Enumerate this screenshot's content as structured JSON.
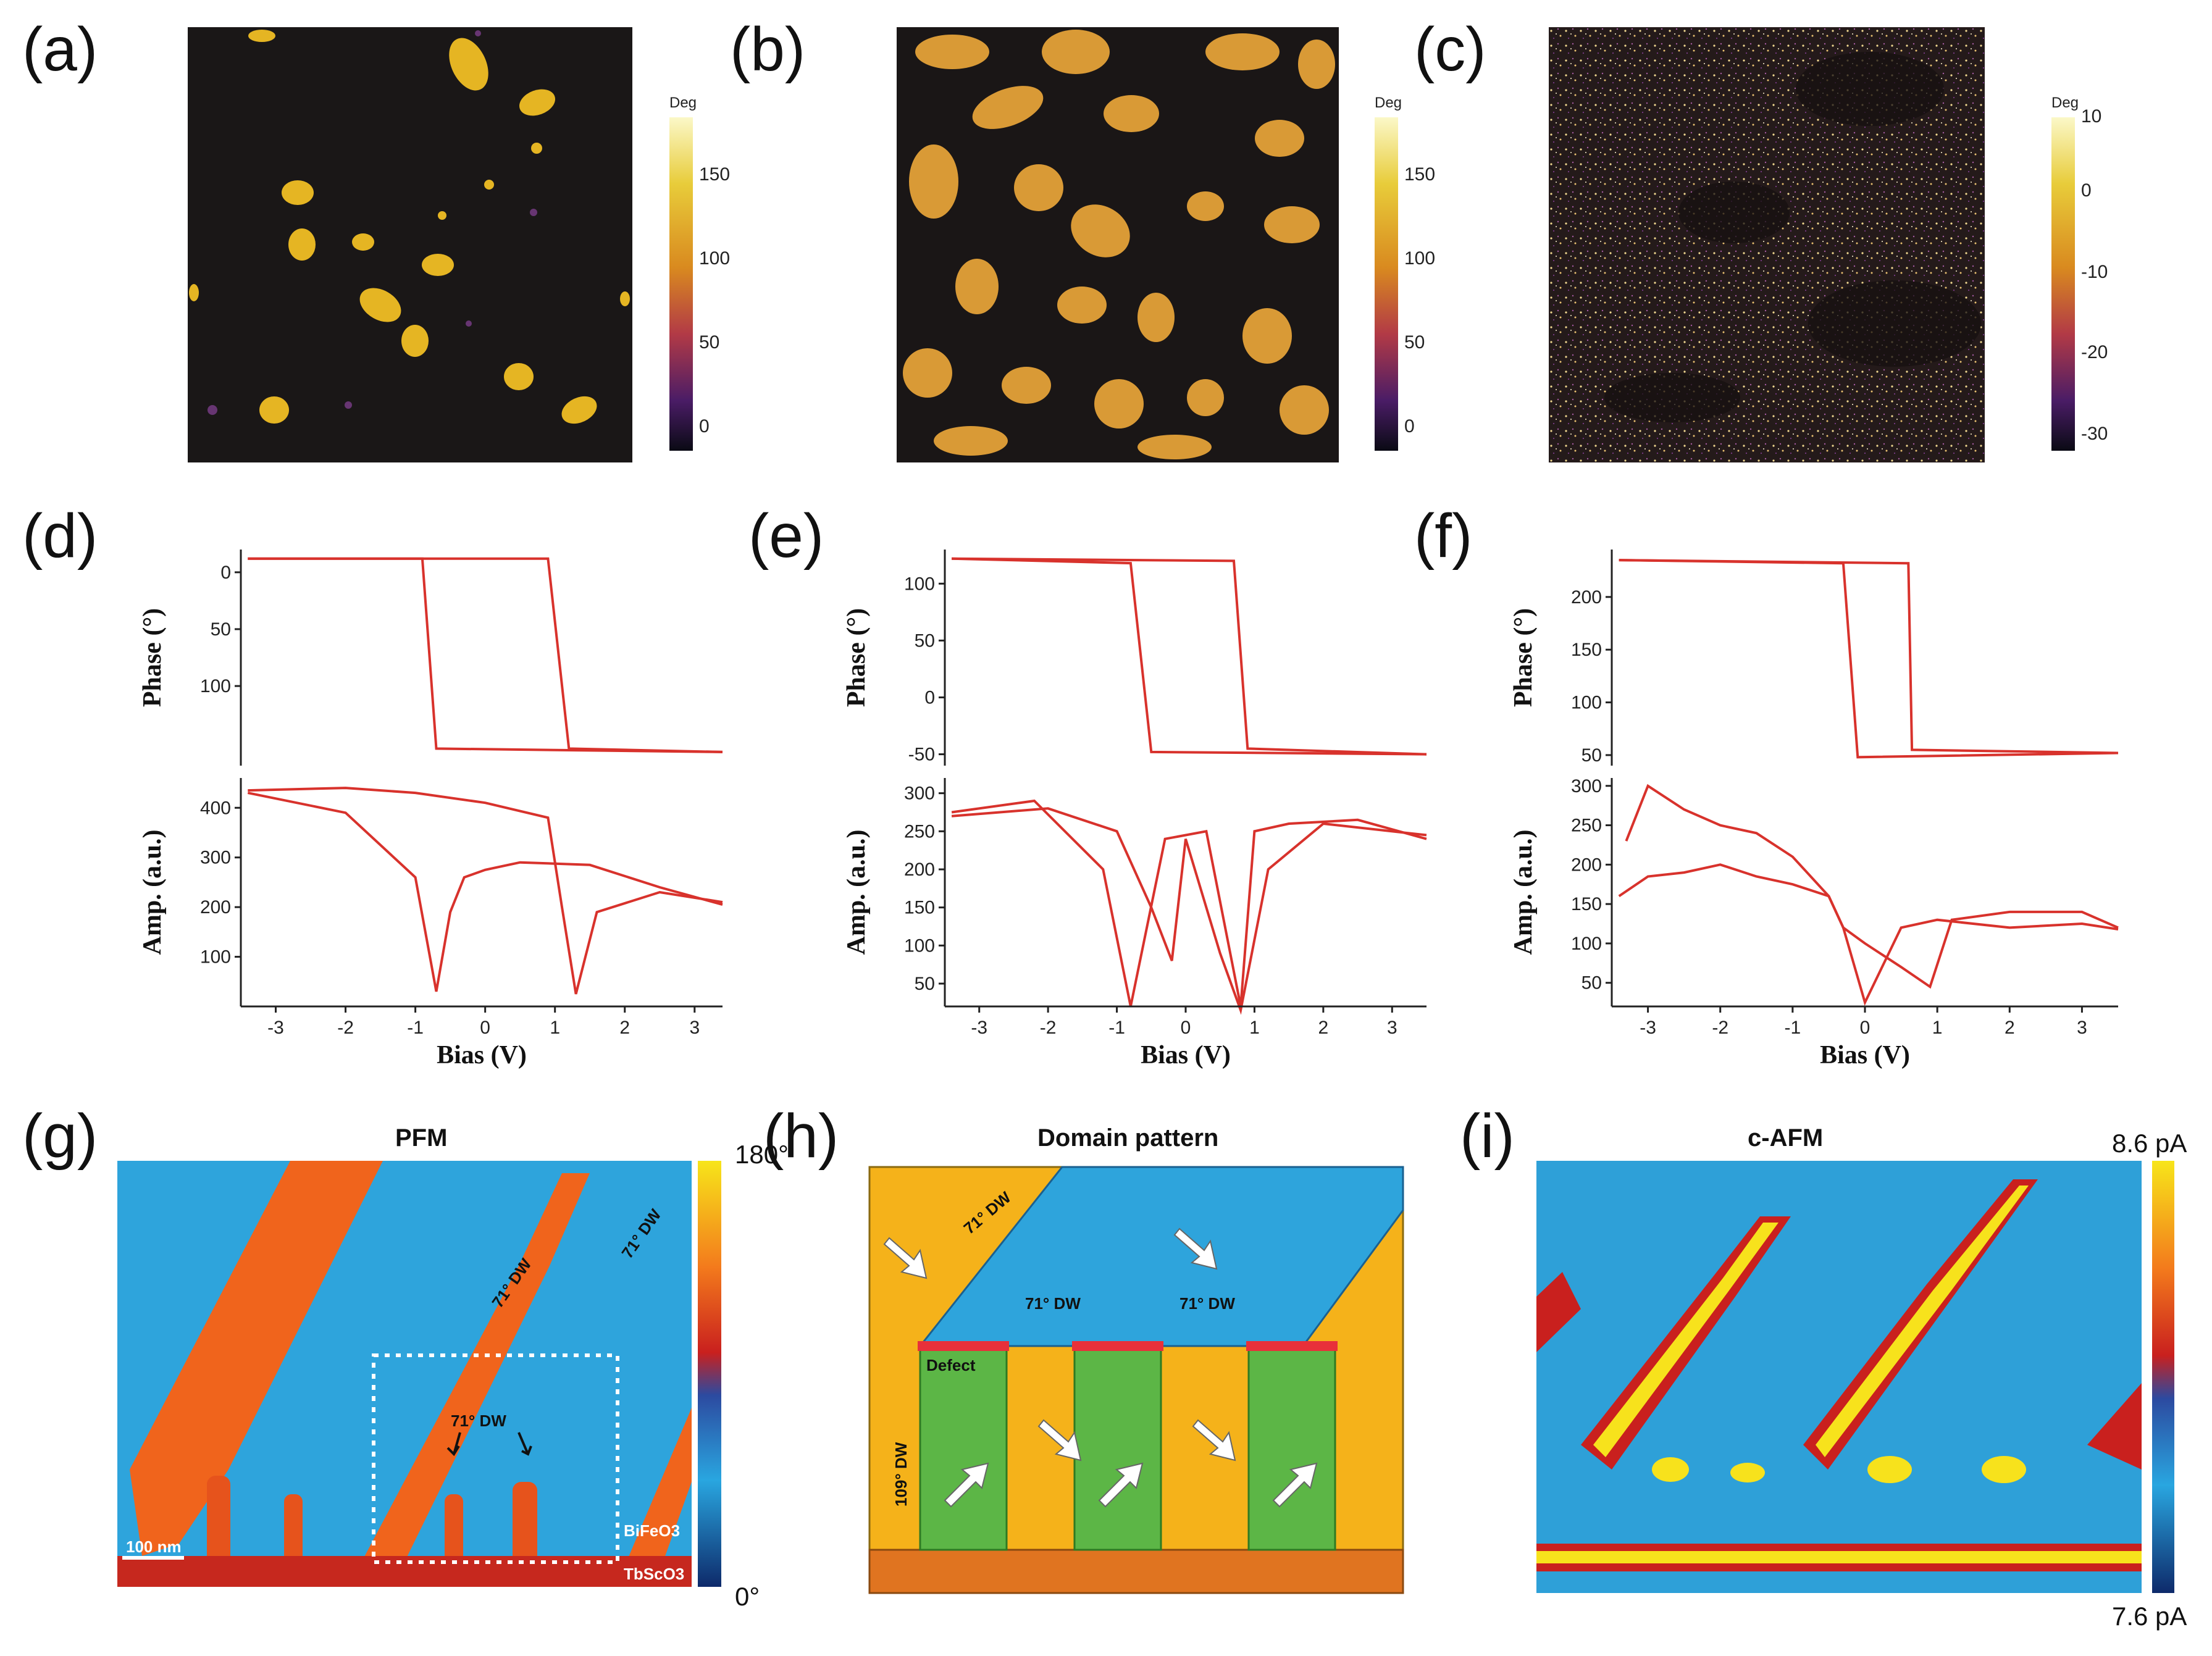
{
  "panels": {
    "a": {
      "label": "(a)",
      "colorbar": {
        "title": "Deg",
        "ticks": [
          "150",
          "100",
          "50",
          "0"
        ]
      }
    },
    "b": {
      "label": "(b)",
      "colorbar": {
        "title": "Deg",
        "ticks": [
          "150",
          "100",
          "50",
          "0"
        ]
      }
    },
    "c": {
      "label": "(c)",
      "colorbar": {
        "title": "Deg",
        "ticks": [
          "10",
          "0",
          "-10",
          "-20",
          "-30"
        ]
      }
    },
    "d": {
      "label": "(d)"
    },
    "e": {
      "label": "(e)"
    },
    "f": {
      "label": "(f)"
    },
    "g": {
      "label": "(g)",
      "title": "PFM",
      "cb_max": "180°",
      "cb_min": "0°",
      "dw_labels": [
        "71° DW",
        "71° DW",
        "71° DW"
      ],
      "substrate_film": "BiFeO3",
      "substrate": "TbScO3",
      "scale_bar": "100 nm"
    },
    "h": {
      "label": "(h)",
      "title": "Domain pattern",
      "labels": {
        "dw71_top": "71° DW",
        "dw71_a": "71° DW",
        "dw71_b": "71° DW",
        "dw109": "109° DW",
        "defect": "Defect"
      }
    },
    "i": {
      "label": "(i)",
      "title": "c-AFM",
      "cb_max": "8.6 pA",
      "cb_min": "7.6 pA"
    }
  },
  "colors": {
    "curve": "#d8322c",
    "blue_domain": "#29a6e0",
    "orange_domain": "#f5b21a",
    "green_domain": "#5cb646",
    "defect": "#e8303a"
  },
  "chart_data": [
    {
      "type": "line",
      "panel": "d",
      "top": {
        "ylabel": "Phase (°)",
        "yticks": [
          "0",
          "50",
          "100"
        ],
        "ylim_display": [
          -20,
          170
        ],
        "series": [
          {
            "name": "forward",
            "x": [
              -3.4,
              0.9,
              1.2,
              3.4
            ],
            "y": [
              -12,
              -12,
              155,
              158
            ]
          },
          {
            "name": "reverse",
            "x": [
              3.4,
              -0.7,
              -0.9,
              -3.4
            ],
            "y": [
              158,
              155,
              -12,
              -12
            ]
          }
        ]
      },
      "bottom": {
        "ylabel": "Amp. (a.u.)",
        "yticks": [
          "400",
          "300",
          "200",
          "100"
        ],
        "ylim": [
          0,
          460
        ],
        "series": [
          {
            "name": "forward",
            "x": [
              -3.4,
              -2.0,
              -1.0,
              0.0,
              0.9,
              1.1,
              1.3,
              1.6,
              2.5,
              3.4
            ],
            "y": [
              435,
              440,
              430,
              410,
              380,
              200,
              25,
              190,
              230,
              210
            ]
          },
          {
            "name": "reverse",
            "x": [
              3.4,
              2.5,
              1.5,
              0.5,
              0.0,
              -0.3,
              -0.5,
              -0.7,
              -1.0,
              -2.0,
              -3.4
            ],
            "y": [
              205,
              240,
              285,
              290,
              275,
              260,
              190,
              30,
              260,
              390,
              430
            ]
          }
        ]
      },
      "xlabel": "Bias (V)",
      "xticks": [
        "-3",
        "-2",
        "-1",
        "0",
        "1",
        "2",
        "3"
      ],
      "xlim": [
        -3.5,
        3.4
      ]
    },
    {
      "type": "line",
      "panel": "e",
      "top": {
        "ylabel": "Phase (°)",
        "yticks": [
          "100",
          "50",
          "0",
          "-50"
        ],
        "ylim": [
          -60,
          130
        ],
        "series": [
          {
            "name": "forward",
            "x": [
              -3.4,
              0.7,
              0.9,
              3.5
            ],
            "y": [
              122,
              120,
              -45,
              -50
            ]
          },
          {
            "name": "reverse",
            "x": [
              3.5,
              -0.5,
              -0.8,
              -3.4
            ],
            "y": [
              -50,
              -48,
              118,
              122
            ]
          }
        ]
      },
      "bottom": {
        "ylabel": "Amp. (a.u.)",
        "yticks": [
          "300",
          "250",
          "200",
          "150",
          "100",
          "50"
        ],
        "ylim": [
          20,
          320
        ],
        "series": [
          {
            "name": "forward",
            "x": [
              -3.4,
              -2.0,
              -1.0,
              -0.5,
              -0.2,
              0.0,
              0.5,
              0.8,
              1.2,
              2.0,
              3.5
            ],
            "y": [
              270,
              280,
              250,
              150,
              80,
              240,
              90,
              15,
              200,
              260,
              245
            ]
          },
          {
            "name": "reverse",
            "x": [
              3.5,
              2.5,
              1.5,
              1.0,
              0.8,
              0.3,
              -0.3,
              -0.8,
              -1.2,
              -2.2,
              -3.4
            ],
            "y": [
              240,
              265,
              260,
              250,
              20,
              250,
              240,
              20,
              200,
              290,
              275
            ]
          }
        ]
      },
      "xlabel": "Bias (V)",
      "xticks": [
        "-3",
        "-2",
        "-1",
        "0",
        "1",
        "2",
        "3"
      ],
      "xlim": [
        -3.5,
        3.5
      ]
    },
    {
      "type": "line",
      "panel": "f",
      "top": {
        "ylabel": "Phase (°)",
        "yticks": [
          "200",
          "150",
          "100",
          "50"
        ],
        "ylim": [
          40,
          245
        ],
        "series": [
          {
            "name": "forward",
            "x": [
              -3.4,
              0.6,
              0.65,
              3.5
            ],
            "y": [
              235,
              232,
              55,
              52
            ]
          },
          {
            "name": "reverse",
            "x": [
              3.5,
              -0.1,
              -0.3,
              -3.4
            ],
            "y": [
              52,
              48,
              232,
              235
            ]
          }
        ]
      },
      "bottom": {
        "ylabel": "Amp. (a.u.)",
        "yticks": [
          "300",
          "250",
          "200",
          "150",
          "100",
          "50"
        ],
        "ylim": [
          20,
          310
        ],
        "series": [
          {
            "name": "upper",
            "x": [
              -3.3,
              -3.0,
              -2.5,
              -2.0,
              -1.5,
              -1.0,
              -0.5,
              -0.3,
              0.0,
              0.5,
              0.9,
              1.2,
              2.0,
              3.0,
              3.5
            ],
            "y": [
              230,
              300,
              270,
              250,
              240,
              210,
              160,
              120,
              100,
              70,
              45,
              130,
              140,
              140,
              120
            ]
          },
          {
            "name": "lower",
            "x": [
              -3.4,
              -3.0,
              -2.5,
              -2.0,
              -1.5,
              -1.0,
              -0.5,
              -0.3,
              0.0,
              0.5,
              1.0,
              2.0,
              3.0,
              3.5
            ],
            "y": [
              160,
              185,
              190,
              200,
              185,
              175,
              160,
              120,
              25,
              120,
              130,
              120,
              125,
              118
            ]
          }
        ]
      },
      "xlabel": "Bias (V)",
      "xticks": [
        "-3",
        "-2",
        "-1",
        "0",
        "1",
        "2",
        "3"
      ],
      "xlim": [
        -3.5,
        3.5
      ]
    }
  ]
}
